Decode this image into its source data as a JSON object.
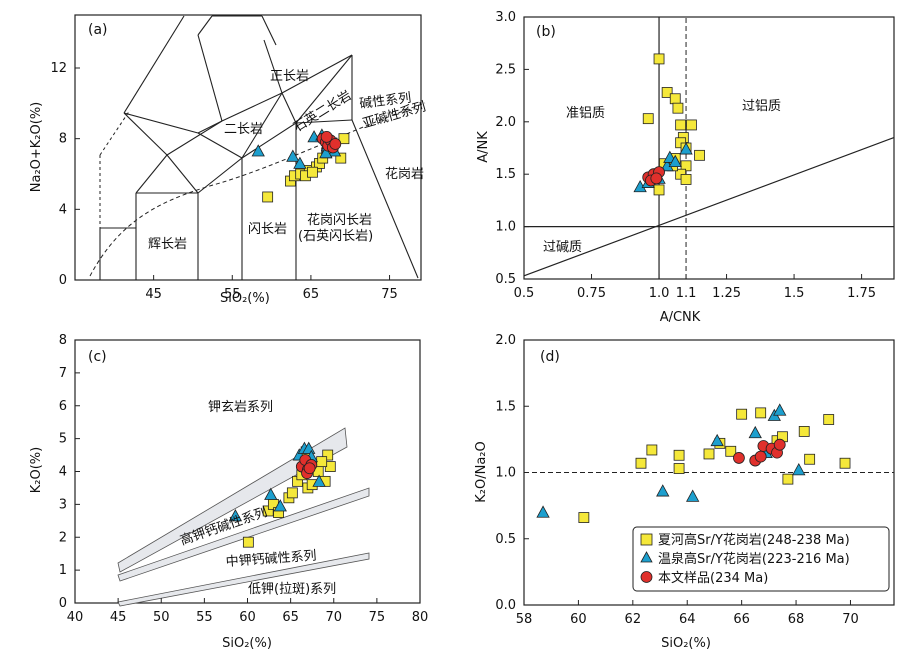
{
  "chart_data": [
    {
      "panel": "(a)",
      "type": "scatter",
      "title": "",
      "xlabel": "SiO₂(%)",
      "ylabel": "Na₂O+K₂O(%)",
      "xlim": [
        35,
        79
      ],
      "ylim": [
        0,
        15
      ],
      "xticks": [
        45,
        55,
        65,
        75
      ],
      "yticks": [
        0,
        4,
        8,
        12
      ],
      "field_labels": [
        "正长岩",
        "石英二长岩",
        "碱性系列",
        "亚碱性系列",
        "二长岩",
        "花岗岩",
        "闪长岩",
        "花岗闪长岩",
        "(石英闪长岩)",
        "辉长岩"
      ],
      "series": [
        {
          "name": "夏河高Sr/Y花岗岩",
          "marker": "square",
          "color": "#f5e83a",
          "x": [
            59.5,
            62.4,
            62.9,
            63.7,
            64.8,
            65.7,
            66.1,
            66.5,
            67.0,
            67.1,
            67.8,
            68.8,
            69.2,
            64.3,
            65.2
          ],
          "y": [
            4.7,
            5.6,
            5.9,
            6.0,
            6.2,
            6.4,
            6.6,
            6.9,
            7.2,
            7.5,
            7.4,
            6.9,
            8.0,
            5.9,
            6.1
          ]
        },
        {
          "name": "温泉高Sr/Y花岗岩",
          "marker": "triangle",
          "color": "#1d9fce",
          "x": [
            58.3,
            62.7,
            63.6,
            65.4,
            66.4,
            67.1,
            68.0,
            66.9
          ],
          "y": [
            7.3,
            7.0,
            6.6,
            8.1,
            8.2,
            7.6,
            7.3,
            7.2
          ]
        },
        {
          "name": "本文样品",
          "marker": "circle",
          "color": "#e0302c",
          "x": [
            66.5,
            66.9,
            67.2,
            67.5,
            67.8,
            68.1,
            67.0
          ],
          "y": [
            8.0,
            7.8,
            7.6,
            7.9,
            7.5,
            7.7,
            8.1
          ]
        }
      ]
    },
    {
      "panel": "(b)",
      "type": "scatter",
      "xlabel": "A/CNK",
      "ylabel": "A/NK",
      "xlim": [
        0.5,
        1.87
      ],
      "ylim": [
        0.5,
        3.0
      ],
      "xticks": [
        0.5,
        0.75,
        1.0,
        1.1,
        1.25,
        1.5,
        1.75
      ],
      "xticklabels": [
        "0.5",
        "0.75",
        "1.0",
        "1.1",
        "1.25",
        "1.5",
        "1.75"
      ],
      "yticks": [
        0.5,
        1.0,
        1.5,
        2.0,
        2.5,
        3.0
      ],
      "field_labels": [
        "准铝质",
        "过铝质",
        "过碱质"
      ],
      "series": [
        {
          "name": "夏河高Sr/Y花岗岩",
          "marker": "square",
          "color": "#f5e83a",
          "x": [
            1.0,
            0.96,
            1.03,
            1.06,
            1.07,
            1.08,
            1.12,
            1.09,
            1.08,
            1.1,
            1.06,
            1.15,
            1.1,
            1.08,
            1.1,
            1.05,
            1.0,
            1.02
          ],
          "y": [
            2.6,
            2.03,
            2.28,
            2.22,
            2.13,
            1.97,
            1.97,
            1.85,
            1.8,
            1.75,
            1.65,
            1.68,
            1.58,
            1.5,
            1.45,
            1.58,
            1.35,
            1.6
          ]
        },
        {
          "name": "温泉高Sr/Y花岗岩",
          "marker": "triangle",
          "color": "#1d9fce",
          "x": [
            0.93,
            0.96,
            1.0,
            1.03,
            1.04,
            1.1,
            1.06
          ],
          "y": [
            1.38,
            1.42,
            1.46,
            1.58,
            1.66,
            1.74,
            1.62
          ]
        },
        {
          "name": "本文样品",
          "marker": "circle",
          "color": "#e0302c",
          "x": [
            0.96,
            0.98,
            1.0,
            0.97,
            0.99
          ],
          "y": [
            1.47,
            1.5,
            1.52,
            1.44,
            1.46
          ]
        }
      ]
    },
    {
      "panel": "(c)",
      "type": "scatter",
      "xlabel": "SiO₂(%)",
      "ylabel": "K₂O(%)",
      "xlim": [
        40,
        80
      ],
      "ylim": [
        0,
        8
      ],
      "xticks": [
        40,
        45,
        50,
        55,
        60,
        65,
        70,
        75,
        80
      ],
      "yticks": [
        0,
        1,
        2,
        3,
        4,
        5,
        6,
        7,
        8
      ],
      "field_labels": [
        "钾玄岩系列",
        "高钾钙碱性系列",
        "中钾钙碱性系列",
        "低钾(拉斑)系列"
      ],
      "series": [
        {
          "name": "夏河高Sr/Y花岗岩",
          "marker": "square",
          "color": "#f5e83a",
          "x": [
            60.1,
            62.4,
            63.0,
            63.6,
            64.8,
            65.2,
            65.8,
            66.3,
            67.0,
            67.5,
            68.2,
            69.0,
            69.6,
            69.3,
            68.6,
            66.8
          ],
          "y": [
            1.85,
            2.8,
            3.0,
            2.75,
            3.2,
            3.35,
            3.7,
            3.9,
            3.5,
            3.6,
            4.0,
            3.7,
            4.15,
            4.5,
            4.3,
            4.6
          ]
        },
        {
          "name": "温泉高Sr/Y花岗岩",
          "marker": "triangle",
          "color": "#1d9fce",
          "x": [
            58.6,
            62.7,
            63.8,
            66.0,
            66.6,
            67.1,
            67.4,
            68.3
          ],
          "y": [
            2.65,
            3.3,
            2.95,
            4.5,
            4.7,
            4.7,
            4.45,
            3.7
          ]
        },
        {
          "name": "本文样品",
          "marker": "circle",
          "color": "#e0302c",
          "x": [
            66.3,
            66.7,
            67.0,
            67.4,
            66.9,
            67.2
          ],
          "y": [
            4.15,
            4.35,
            4.05,
            4.2,
            3.95,
            4.1
          ]
        }
      ]
    },
    {
      "panel": "(d)",
      "type": "scatter",
      "xlabel": "SiO₂(%)",
      "ylabel": "K₂O/Na₂O",
      "xlim": [
        58,
        71.6
      ],
      "ylim": [
        0,
        2.0
      ],
      "xticks": [
        58,
        60,
        62,
        64,
        66,
        68,
        70
      ],
      "yticks": [
        0.0,
        0.5,
        1.0,
        1.5,
        2.0
      ],
      "reference_line": 1.0,
      "series": [
        {
          "name": "夏河高Sr/Y花岗岩",
          "marker": "square",
          "color": "#f5e83a",
          "x": [
            60.2,
            62.3,
            62.7,
            63.7,
            63.7,
            64.8,
            65.2,
            65.6,
            66.0,
            66.7,
            67.3,
            67.5,
            67.7,
            68.3,
            68.5,
            69.2,
            69.8
          ],
          "y": [
            0.66,
            1.07,
            1.17,
            1.13,
            1.03,
            1.14,
            1.22,
            1.16,
            1.44,
            1.45,
            1.24,
            1.27,
            0.95,
            1.31,
            1.1,
            1.4,
            1.07
          ]
        },
        {
          "name": "温泉高Sr/Y花岗岩",
          "marker": "triangle",
          "color": "#1d9fce",
          "x": [
            58.7,
            63.1,
            64.2,
            65.1,
            66.5,
            67.2,
            67.4,
            68.1,
            66.9
          ],
          "y": [
            0.7,
            0.86,
            0.82,
            1.24,
            1.3,
            1.43,
            1.47,
            1.02,
            1.15
          ]
        },
        {
          "name": "本文样品",
          "marker": "circle",
          "color": "#e0302c",
          "x": [
            65.9,
            66.5,
            66.7,
            66.8,
            67.1,
            67.3,
            67.4
          ],
          "y": [
            1.11,
            1.09,
            1.12,
            1.2,
            1.18,
            1.15,
            1.21
          ]
        }
      ],
      "legend": {
        "placement": "bottom-right",
        "entries": [
          {
            "label": "夏河高Sr/Y花岗岩(248-238 Ma)",
            "marker": "square",
            "color": "#f5e83a"
          },
          {
            "label": "温泉高Sr/Y花岗岩(223-216 Ma)",
            "marker": "triangle",
            "color": "#1d9fce"
          },
          {
            "label": "本文样品(234 Ma)",
            "marker": "circle",
            "color": "#e0302c"
          }
        ]
      }
    }
  ]
}
